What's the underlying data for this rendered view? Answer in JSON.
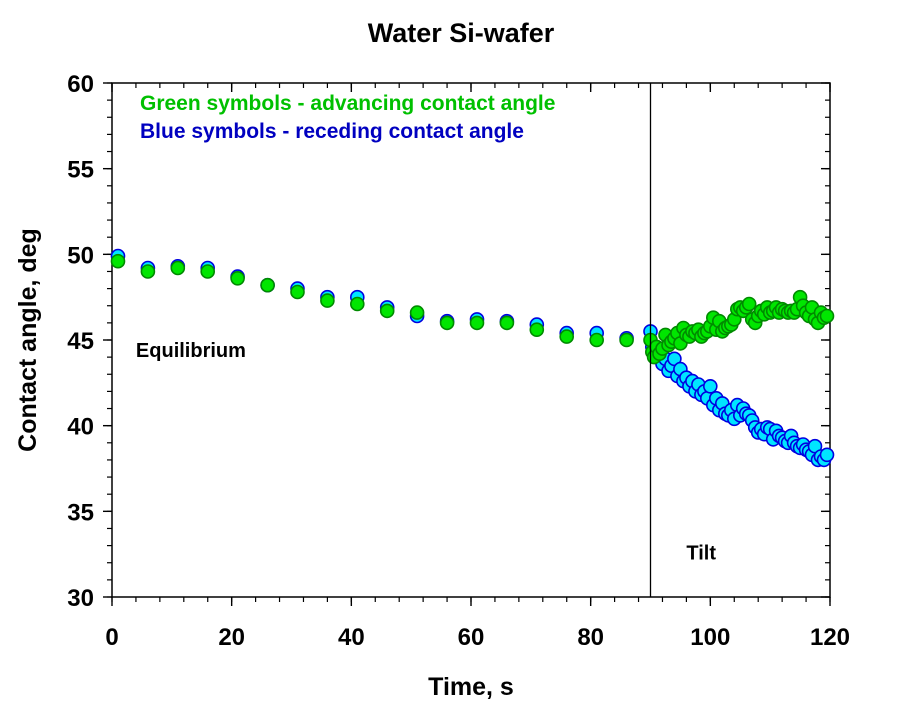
{
  "chart_data": {
    "type": "scatter",
    "title": "Water Si-wafer",
    "xlabel": "Time, s",
    "ylabel": "Contact angle, deg",
    "xlim": [
      0,
      120
    ],
    "ylim": [
      30,
      60
    ],
    "xticks": [
      0,
      20,
      40,
      60,
      80,
      100,
      120
    ],
    "xtick_labels": [
      "0",
      "20",
      "40",
      "60",
      "80",
      "100",
      "120"
    ],
    "yticks": [
      30,
      35,
      40,
      45,
      50,
      55,
      60
    ],
    "ytick_labels": [
      "30",
      "35",
      "40",
      "45",
      "50",
      "55",
      "60"
    ],
    "x_minor_step": 4,
    "y_minor_step": 1,
    "grid": false,
    "legend_placement": "top-left",
    "legend": [
      {
        "text": "Green symbols - advancing contact angle",
        "color": "#00c000"
      },
      {
        "text": "Blue symbols - receding contact angle",
        "color": "#0000c0"
      }
    ],
    "annotations": [
      {
        "text": "Equilibrium",
        "x": 4,
        "y": 44.0
      },
      {
        "text": "Tilt",
        "x": 96,
        "y": 32.2
      }
    ],
    "vertical_line": {
      "x": 90,
      "label": "tilt start"
    },
    "series": [
      {
        "name": "Receding contact angle",
        "fill": "#00e5ff",
        "stroke": "#0000e0",
        "x": [
          1,
          6,
          11,
          16,
          21,
          26,
          31,
          36,
          41,
          46,
          51,
          56,
          61,
          66,
          71,
          76,
          81,
          86,
          90,
          90.3,
          90.6,
          91,
          91.5,
          92,
          92.5,
          93,
          93.5,
          94,
          94.5,
          95,
          95.5,
          96,
          96.5,
          97,
          97.5,
          98,
          98.5,
          99,
          99.5,
          100,
          100.5,
          101,
          101.5,
          102,
          102.5,
          103,
          103.5,
          104,
          104.5,
          105,
          105.5,
          106,
          106.5,
          107,
          107.5,
          108,
          108.5,
          109,
          109.5,
          110,
          110.5,
          111,
          111.5,
          112,
          112.5,
          113,
          113.5,
          114,
          114.5,
          115,
          115.5,
          116,
          116.5,
          117,
          117.5,
          118,
          118.5,
          119,
          119.5
        ],
        "y": [
          49.9,
          49.2,
          49.3,
          49.2,
          48.7,
          48.2,
          48.0,
          47.5,
          47.5,
          46.9,
          46.4,
          46.1,
          46.2,
          46.1,
          45.9,
          45.4,
          45.4,
          45.1,
          45.5,
          44.6,
          44.2,
          44.0,
          44.3,
          43.6,
          43.9,
          43.2,
          43.5,
          43.9,
          42.9,
          43.3,
          42.6,
          42.8,
          42.3,
          42.6,
          42.0,
          42.4,
          41.8,
          42.0,
          41.6,
          42.3,
          41.2,
          41.6,
          40.9,
          41.3,
          40.7,
          40.6,
          40.9,
          40.4,
          41.2,
          40.6,
          41.0,
          40.7,
          40.6,
          40.3,
          39.9,
          39.6,
          39.8,
          39.5,
          39.9,
          39.8,
          39.2,
          39.7,
          39.4,
          39.3,
          39.1,
          39.0,
          39.4,
          39.0,
          38.8,
          38.7,
          38.9,
          38.6,
          38.5,
          38.3,
          38.8,
          38.0,
          38.2,
          38.0,
          38.3
        ]
      },
      {
        "name": "Advancing contact angle",
        "fill": "#00e600",
        "stroke": "#008a00",
        "x": [
          1,
          6,
          11,
          16,
          21,
          26,
          31,
          36,
          41,
          46,
          51,
          56,
          61,
          66,
          71,
          76,
          81,
          86,
          90,
          90.3,
          90.6,
          91,
          91.5,
          92,
          92.5,
          93,
          93.5,
          94,
          94.5,
          95,
          95.5,
          96,
          96.5,
          97,
          97.5,
          98,
          98.5,
          99,
          99.5,
          100,
          100.5,
          101,
          101.5,
          102,
          102.5,
          103,
          103.5,
          104,
          104.5,
          105,
          105.5,
          106,
          106.5,
          107,
          107.5,
          108,
          108.5,
          109,
          109.5,
          110,
          110.5,
          111,
          111.5,
          112,
          112.5,
          113,
          113.5,
          114,
          114.5,
          115,
          115.5,
          116,
          116.5,
          117,
          117.5,
          118,
          118.5,
          119,
          119.5
        ],
        "y": [
          49.6,
          49.0,
          49.2,
          49.0,
          48.6,
          48.2,
          47.8,
          47.3,
          47.1,
          46.7,
          46.6,
          46.0,
          46.0,
          46.0,
          45.6,
          45.2,
          45.0,
          45.0,
          45.0,
          44.3,
          44.0,
          44.6,
          44.2,
          44.5,
          45.3,
          44.7,
          44.9,
          45.1,
          45.4,
          44.8,
          45.7,
          45.3,
          45.2,
          45.5,
          45.4,
          45.6,
          45.2,
          45.4,
          45.5,
          45.8,
          46.3,
          45.6,
          46.1,
          45.5,
          45.7,
          45.8,
          45.9,
          46.2,
          46.8,
          46.9,
          46.7,
          46.9,
          47.1,
          46.2,
          46.0,
          46.4,
          46.7,
          46.5,
          46.9,
          46.6,
          46.7,
          46.9,
          46.6,
          46.8,
          46.7,
          46.6,
          46.7,
          46.6,
          46.8,
          47.5,
          47.0,
          46.6,
          46.4,
          46.9,
          46.2,
          46.0,
          46.6,
          46.3,
          46.4
        ]
      }
    ]
  }
}
